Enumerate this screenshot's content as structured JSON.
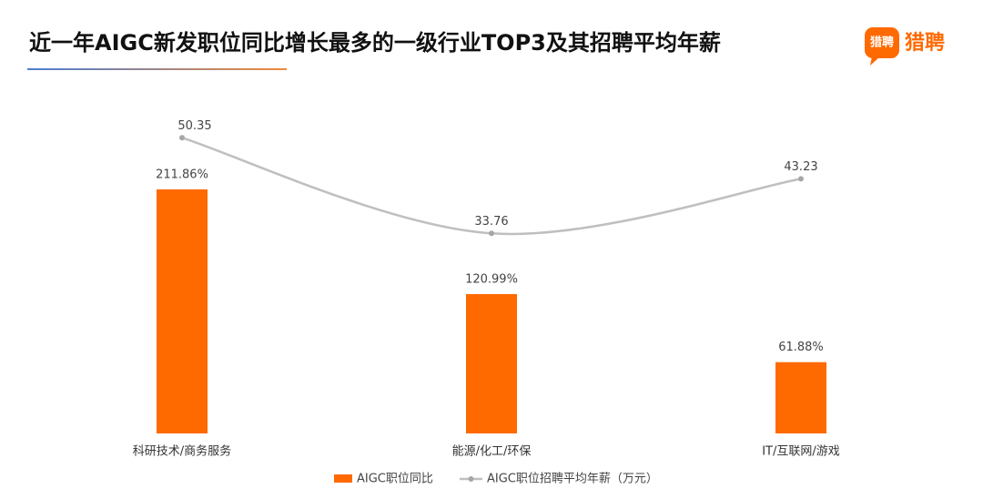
{
  "brand": "猎聘",
  "chart_data": {
    "type": "bar-line",
    "title": "近一年AIGC新发职位同比增长最多的一级行业TOP3及其招聘平均年薪",
    "categories": [
      "科研技术/商务服务",
      "能源/化工/环保",
      "IT/互联网/游戏"
    ],
    "series": [
      {
        "name": "AIGC职位同比",
        "type": "bar",
        "color": "#ff6a00",
        "values": [
          211.86,
          120.99,
          61.88
        ],
        "value_labels": [
          "211.86%",
          "120.99%",
          "61.88%"
        ]
      },
      {
        "name": "AIGC职位招聘平均年薪（万元）",
        "type": "line",
        "color": "#bfbfbf",
        "values": [
          50.35,
          33.76,
          43.23
        ],
        "axis": "y2"
      }
    ]
  }
}
